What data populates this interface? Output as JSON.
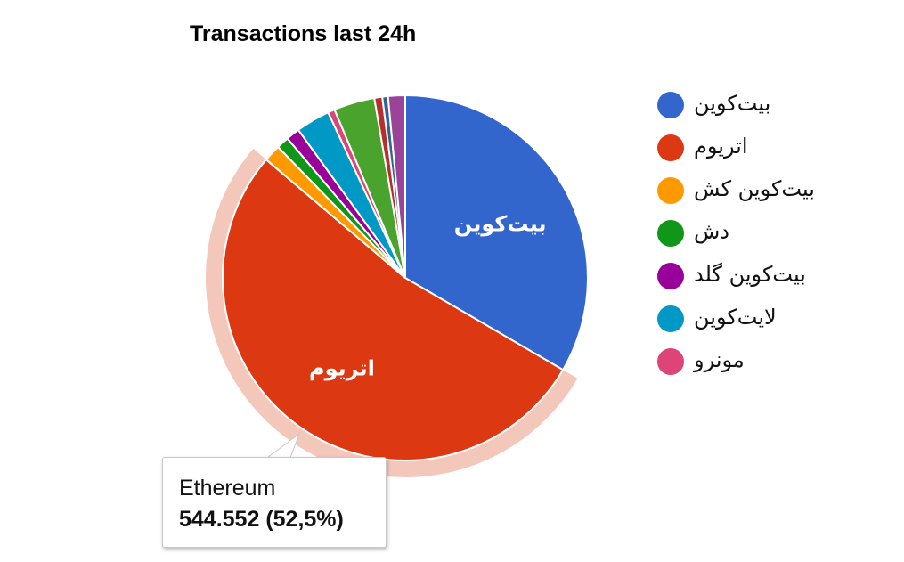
{
  "chart_data": {
    "type": "pie",
    "title": "Transactions last 24h",
    "slices": [
      {
        "label": "بیت‌کوین",
        "percent": 33.2,
        "color": "#3366cc",
        "slice_label": "بیت‌کوین"
      },
      {
        "label": "اتریوم",
        "percent": 52.5,
        "color": "#dc3912",
        "slice_label": "اتریوم",
        "highlighted": true
      },
      {
        "label": "بیت‌کوین کش",
        "percent": 1.5,
        "color": "#ff9900"
      },
      {
        "label": "دش",
        "percent": 1.1,
        "color": "#109618"
      },
      {
        "label": "بیت‌کوین گلد",
        "percent": 1.2,
        "color": "#990099"
      },
      {
        "label": "لایت‌کوین",
        "percent": 3.0,
        "color": "#0099c6"
      },
      {
        "label": "مونرو",
        "percent": 0.6,
        "color": "#dd4477"
      },
      {
        "label": "",
        "percent": 3.6,
        "color": "#4aa32c"
      },
      {
        "label": "",
        "percent": 0.7,
        "color": "#b82e2e"
      },
      {
        "label": "",
        "percent": 0.5,
        "color": "#316395"
      },
      {
        "label": "",
        "percent": 1.5,
        "color": "#994499"
      }
    ],
    "legend_position": "right"
  },
  "legend": [
    {
      "label": "بیت‌کوین",
      "color": "#3366cc"
    },
    {
      "label": "اتریوم",
      "color": "#dc3912"
    },
    {
      "label": "بیت‌کوین کش",
      "color": "#ff9900"
    },
    {
      "label": "دش",
      "color": "#109618"
    },
    {
      "label": "بیت‌کوین گلد",
      "color": "#990099"
    },
    {
      "label": "لایت‌کوین",
      "color": "#0099c6"
    },
    {
      "label": "مونرو",
      "color": "#dd4477"
    }
  ],
  "tooltip": {
    "name": "Ethereum",
    "value": "544.552 (52,5%)"
  }
}
